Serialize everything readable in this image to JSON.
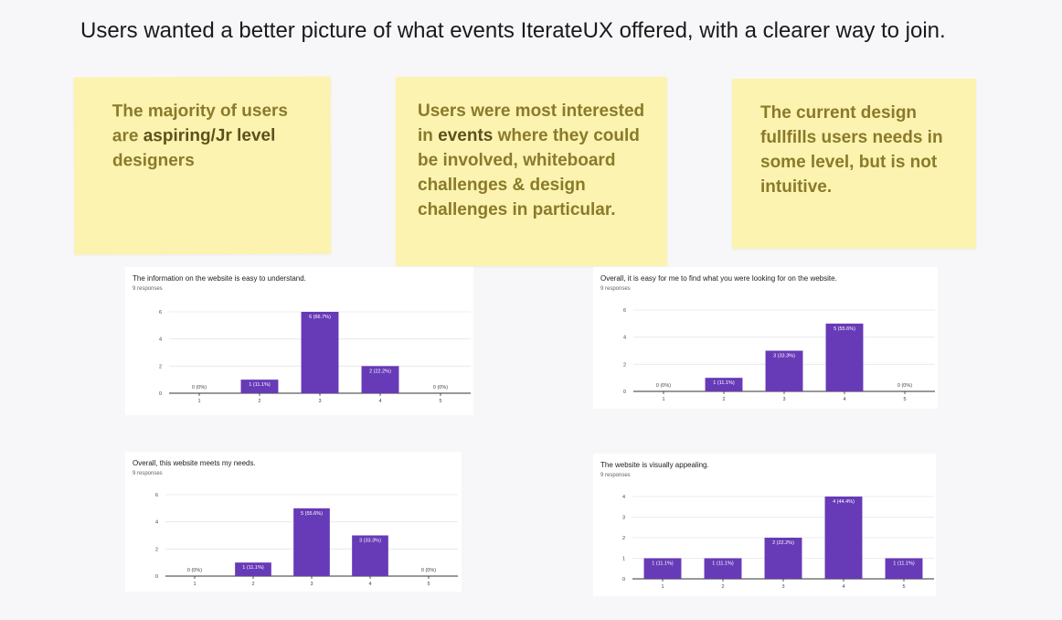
{
  "headline": "Users wanted a better picture of what events IterateUX offered, with a clearer way to join.",
  "notes": [
    {
      "html": "The majority of users are <b>aspiring/Jr level</b> designers"
    },
    {
      "html": "Users were most interested in <b>events</b> where they could be involved, whiteboard challenges &amp; design challenges in particular."
    },
    {
      "html": "The current design fullfills users needs in some level, but is not intuitive."
    }
  ],
  "charts": [
    {
      "title": "The information on the website is easy to understand.",
      "subtitle": "9 responses"
    },
    {
      "title": "Overall, it is easy for me to find what you were looking for on the website.",
      "subtitle": "9 responses"
    },
    {
      "title": "Overall, this website meets my needs.",
      "subtitle": "9 responses"
    },
    {
      "title": "The website is visually appealing.",
      "subtitle": "9 responses"
    }
  ],
  "bar_color": "#673ab7",
  "chart_data": [
    {
      "type": "bar",
      "title": "The information on the website is easy to understand.",
      "categories": [
        "1",
        "2",
        "3",
        "4",
        "5"
      ],
      "values": [
        0,
        1,
        6,
        2,
        0
      ],
      "labels": [
        "0 (0%)",
        "1 (11.1%)",
        "6 (66.7%)",
        "2 (22.2%)",
        "0 (0%)"
      ],
      "yticks": [
        0,
        2,
        4,
        6
      ],
      "ylim": [
        0,
        6
      ]
    },
    {
      "type": "bar",
      "title": "Overall, it is easy for me to find what you were looking for on the website.",
      "categories": [
        "1",
        "2",
        "3",
        "4",
        "5"
      ],
      "values": [
        0,
        1,
        3,
        5,
        0
      ],
      "labels": [
        "0 (0%)",
        "1 (11.1%)",
        "3 (33.3%)",
        "5 (55.6%)",
        "0 (0%)"
      ],
      "yticks": [
        0,
        2,
        4,
        6
      ],
      "ylim": [
        0,
        6
      ]
    },
    {
      "type": "bar",
      "title": "Overall, this website meets my needs.",
      "categories": [
        "1",
        "2",
        "3",
        "4",
        "5"
      ],
      "values": [
        0,
        1,
        5,
        3,
        0
      ],
      "labels": [
        "0 (0%)",
        "1 (11.1%)",
        "5 (55.6%)",
        "3 (33.3%)",
        "0 (0%)"
      ],
      "yticks": [
        0,
        2,
        4,
        6
      ],
      "ylim": [
        0,
        6
      ]
    },
    {
      "type": "bar",
      "title": "The website is visually appealing.",
      "categories": [
        "1",
        "2",
        "3",
        "4",
        "5"
      ],
      "values": [
        1,
        1,
        2,
        4,
        1
      ],
      "labels": [
        "1 (11.1%)",
        "1 (11.1%)",
        "2 (22.2%)",
        "4 (44.4%)",
        "1 (11.1%)"
      ],
      "yticks": [
        0,
        1,
        2,
        3,
        4
      ],
      "ylim": [
        0,
        4
      ]
    }
  ]
}
